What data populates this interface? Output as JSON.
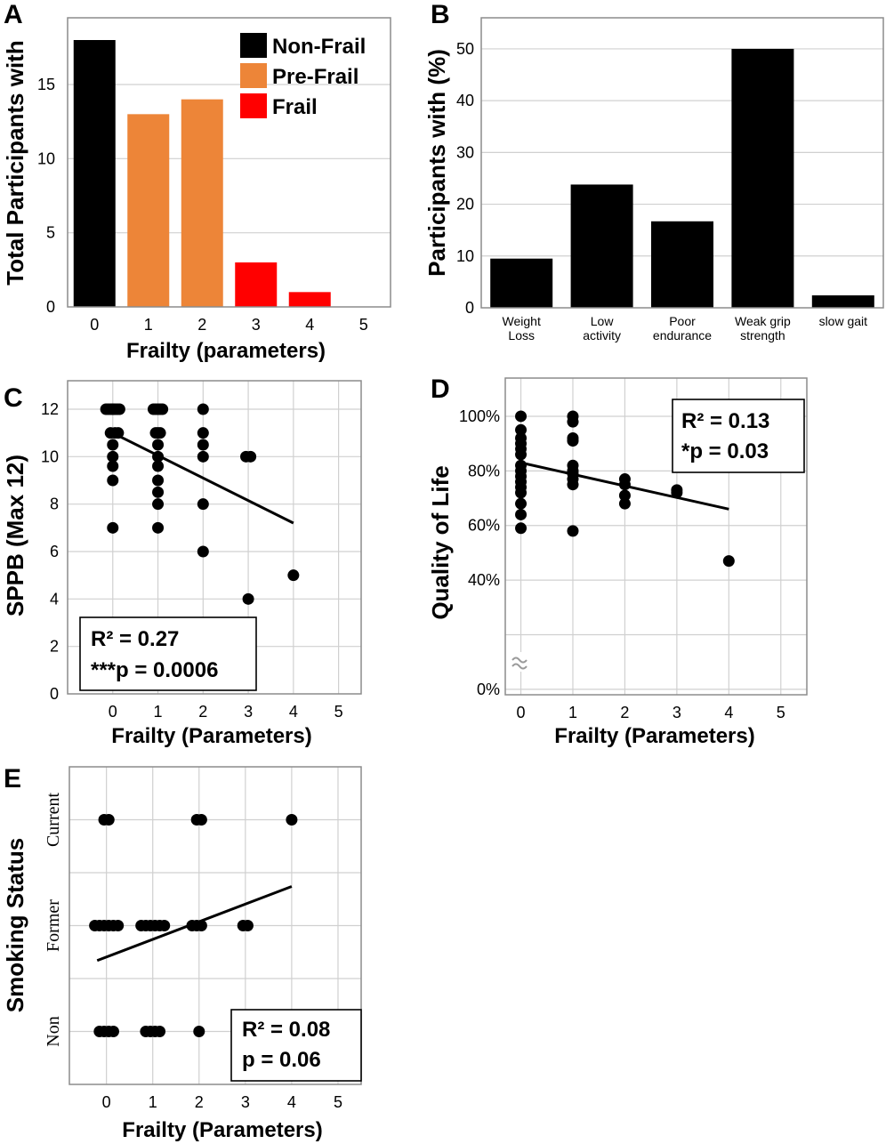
{
  "chart_data": [
    {
      "panel": "A",
      "type": "bar",
      "categories": [
        "0",
        "1",
        "2",
        "3",
        "4",
        "5"
      ],
      "values": [
        18,
        13,
        14,
        3,
        1,
        0
      ],
      "groups": [
        "Non-Frail",
        "Pre-Frail",
        "Pre-Frail",
        "Frail",
        "Frail",
        "Frail"
      ],
      "legend": [
        {
          "label": "Non-Frail",
          "color": "#000000"
        },
        {
          "label": "Pre-Frail",
          "color": "#ed8538"
        },
        {
          "label": "Frail",
          "color": "#ff0000"
        }
      ],
      "xlabel": "Frailty (parameters)",
      "ylabel": "Total Participants with",
      "ylim": [
        0,
        19.5
      ],
      "yticks": [
        0,
        5,
        10,
        15
      ],
      "grid": true
    },
    {
      "panel": "B",
      "type": "bar",
      "categories": [
        {
          "line1": "Weight",
          "line2": "Loss"
        },
        {
          "line1": "Low",
          "line2": "activity"
        },
        {
          "line1": "Poor",
          "line2": "endurance"
        },
        {
          "line1": "Weak grip",
          "line2": "strength"
        },
        {
          "line1": "slow gait",
          "line2": ""
        }
      ],
      "values": [
        9.5,
        23.8,
        16.7,
        50,
        2.4
      ],
      "color": "#000000",
      "xlabel": "",
      "ylabel": "Participants with (%)",
      "ylim": [
        0,
        56
      ],
      "yticks": [
        0,
        10,
        20,
        30,
        40,
        50
      ],
      "grid": true
    },
    {
      "panel": "C",
      "type": "scatter",
      "xlabel": "Frailty (Parameters)",
      "ylabel": "SPPB (Max 12)",
      "xlim": [
        -1,
        5.5
      ],
      "ylim": [
        0,
        13.2
      ],
      "xticks": [
        0,
        1,
        2,
        3,
        4,
        5
      ],
      "yticks": [
        0,
        2,
        4,
        6,
        8,
        10,
        12
      ],
      "points": [
        [
          0,
          12
        ],
        [
          -0.1,
          12
        ],
        [
          0.1,
          12
        ],
        [
          -0.05,
          12
        ],
        [
          0.05,
          12
        ],
        [
          0.15,
          12
        ],
        [
          -0.15,
          12
        ],
        [
          -0.05,
          11
        ],
        [
          0.05,
          11
        ],
        [
          0.12,
          11
        ],
        [
          0,
          10.5
        ],
        [
          0,
          10
        ],
        [
          0,
          9.6
        ],
        [
          0,
          9
        ],
        [
          0,
          7
        ],
        [
          0,
          12
        ],
        [
          0.9,
          12
        ],
        [
          1,
          12
        ],
        [
          1.1,
          12
        ],
        [
          0.95,
          12
        ],
        [
          1.05,
          12
        ],
        [
          0.95,
          11
        ],
        [
          1.05,
          11
        ],
        [
          1,
          11
        ],
        [
          1,
          10.5
        ],
        [
          1,
          10
        ],
        [
          1,
          9.6
        ],
        [
          1,
          9
        ],
        [
          1,
          8.5
        ],
        [
          1,
          8
        ],
        [
          1,
          7
        ],
        [
          2,
          12
        ],
        [
          2,
          11
        ],
        [
          2,
          10.5
        ],
        [
          2,
          10
        ],
        [
          2,
          8
        ],
        [
          2,
          6
        ],
        [
          2.95,
          10
        ],
        [
          3.05,
          10
        ],
        [
          3,
          4
        ],
        [
          4,
          5
        ]
      ],
      "trendline": {
        "x": [
          0,
          4
        ],
        "y": [
          11,
          7.2
        ]
      },
      "annotation": {
        "r2": "R² = 0.27",
        "p": "***p = 0.0006"
      },
      "grid": true
    },
    {
      "panel": "D",
      "type": "scatter",
      "xlabel": "Frailty (Parameters)",
      "ylabel": "Quality of Life",
      "xlim": [
        -0.3,
        5.5
      ],
      "ylim": [
        -2,
        114
      ],
      "xticks": [
        0,
        1,
        2,
        3,
        4,
        5
      ],
      "ytick_labels": [
        {
          "pos": 100,
          "label": "100%"
        },
        {
          "pos": 80,
          "label": "80%"
        },
        {
          "pos": 60,
          "label": "60%"
        },
        {
          "pos": 40,
          "label": "40%"
        },
        {
          "pos": 0,
          "label": "0%"
        }
      ],
      "axis_break": true,
      "points": [
        [
          0,
          100
        ],
        [
          0,
          95
        ],
        [
          0,
          92
        ],
        [
          0,
          90
        ],
        [
          0,
          88
        ],
        [
          0,
          86
        ],
        [
          0,
          82
        ],
        [
          0,
          80
        ],
        [
          0,
          78
        ],
        [
          0,
          76
        ],
        [
          0,
          74
        ],
        [
          0,
          72
        ],
        [
          0,
          68
        ],
        [
          0,
          64
        ],
        [
          0,
          59
        ],
        [
          1,
          100
        ],
        [
          1,
          98
        ],
        [
          1,
          92
        ],
        [
          1,
          91
        ],
        [
          1,
          82
        ],
        [
          1,
          80
        ],
        [
          1,
          79
        ],
        [
          1,
          77
        ],
        [
          1,
          75
        ],
        [
          1,
          58
        ],
        [
          2,
          77
        ],
        [
          2,
          75
        ],
        [
          2,
          71
        ],
        [
          2,
          68
        ],
        [
          3,
          73
        ],
        [
          3,
          72
        ],
        [
          4,
          47
        ]
      ],
      "trendline": {
        "x": [
          0,
          4
        ],
        "y": [
          83,
          66
        ]
      },
      "annotation": {
        "r2": "R² = 0.13",
        "p": "*p = 0.03"
      },
      "grid": true
    },
    {
      "panel": "E",
      "type": "scatter",
      "xlabel": "Frailty (Parameters)",
      "ylabel": "Smoking Status",
      "xlim": [
        -0.8,
        5.5
      ],
      "ylim": [
        -0.5,
        2.5
      ],
      "xticks": [
        0,
        1,
        2,
        3,
        4,
        5
      ],
      "ytick_labels": [
        {
          "pos": 0,
          "label": "Non"
        },
        {
          "pos": 1,
          "label": "Former"
        },
        {
          "pos": 2,
          "label": "Current"
        }
      ],
      "points": [
        [
          -0.05,
          2
        ],
        [
          0.05,
          2
        ],
        [
          1.95,
          2
        ],
        [
          2.05,
          2
        ],
        [
          4,
          2
        ],
        [
          -0.25,
          1
        ],
        [
          -0.15,
          1
        ],
        [
          -0.05,
          1
        ],
        [
          0.05,
          1
        ],
        [
          0.15,
          1
        ],
        [
          0.25,
          1
        ],
        [
          0.75,
          1
        ],
        [
          0.85,
          1
        ],
        [
          0.95,
          1
        ],
        [
          1.05,
          1
        ],
        [
          1.15,
          1
        ],
        [
          1.25,
          1
        ],
        [
          1.85,
          1
        ],
        [
          1.95,
          1
        ],
        [
          2.05,
          1
        ],
        [
          2.95,
          1
        ],
        [
          3.05,
          1
        ],
        [
          -0.15,
          0
        ],
        [
          -0.05,
          0
        ],
        [
          0.05,
          0
        ],
        [
          0.15,
          0
        ],
        [
          0.85,
          0
        ],
        [
          0.95,
          0
        ],
        [
          1.05,
          0
        ],
        [
          1.15,
          0
        ],
        [
          2,
          0
        ]
      ],
      "trendline": {
        "x": [
          -0.2,
          4
        ],
        "y": [
          0.67,
          1.37
        ]
      },
      "annotation": {
        "r2": "R² = 0.08",
        "p": "p = 0.06"
      },
      "grid": true
    }
  ]
}
